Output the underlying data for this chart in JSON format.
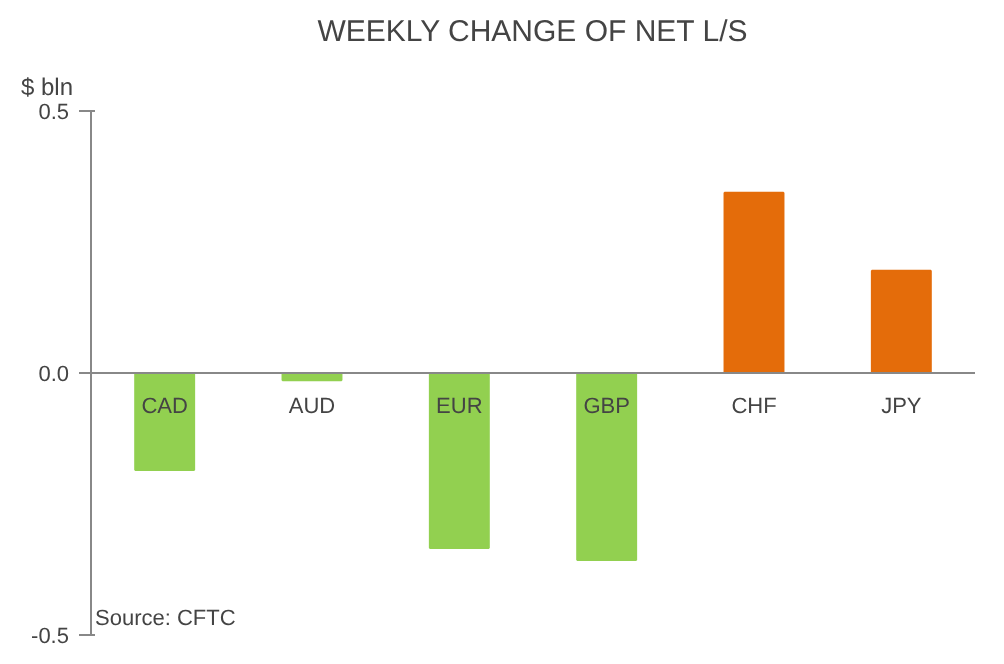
{
  "chart_data": {
    "type": "bar",
    "title": "WEEKLY CHANGE OF NET L/S",
    "ylabel": "$ bln",
    "categories": [
      "CAD",
      "AUD",
      "EUR",
      "GBP",
      "CHF",
      "JPY"
    ],
    "values": [
      -0.185,
      -0.014,
      -0.334,
      -0.357,
      0.344,
      0.195
    ],
    "colors": [
      "#92d050",
      "#92d050",
      "#92d050",
      "#92d050",
      "#e46c0a",
      "#e46c0a"
    ],
    "ylim": [
      -0.5,
      0.5
    ],
    "yticks": [
      {
        "value": -0.5,
        "label": "-0.5"
      },
      {
        "value": 0,
        "label": "0.0"
      },
      {
        "value": 0.5,
        "label": "0.5"
      }
    ],
    "annotations": [
      "Source: CFTC"
    ]
  }
}
